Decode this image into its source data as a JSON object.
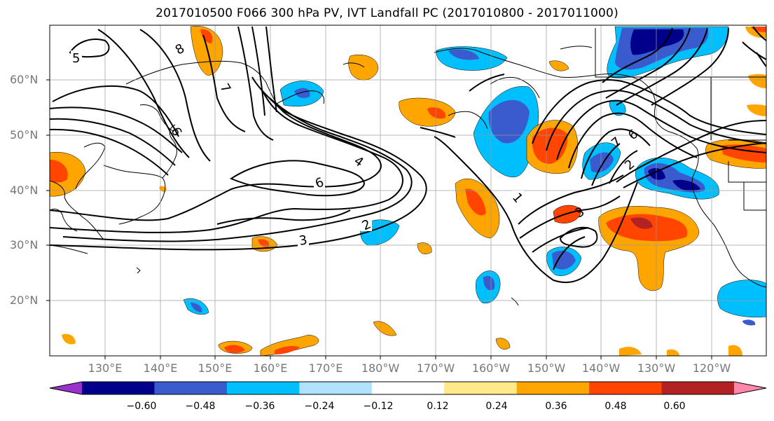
{
  "title": "2017010500 F066 300 hPa PV, IVT Landfall PC (2017010800 - 2017011000)",
  "lat_labels": [
    "60°N",
    "50°N",
    "40°N",
    "30°N",
    "20°N"
  ],
  "lon_labels": [
    "130°E",
    "140°E",
    "150°E",
    "160°E",
    "170°E",
    "180°W",
    "170°W",
    "160°W",
    "150°W",
    "140°W",
    "130°W",
    "120°W"
  ],
  "contour_labels": [
    "5",
    "8",
    "7",
    "6",
    "6",
    "4",
    "3",
    "2",
    "1",
    "3",
    "7",
    "6",
    "2"
  ],
  "colorbar": {
    "ticks": [
      "−0.60",
      "−0.48",
      "−0.36",
      "−0.24",
      "−0.12",
      "0.12",
      "0.24",
      "0.36",
      "0.48",
      "0.60"
    ],
    "colors": [
      "#9932CC",
      "#00008B",
      "#3A5BCD",
      "#00BFFF",
      "#B0E2FF",
      "#FFFFFF",
      "#FFE98A",
      "#FFA500",
      "#FF4500",
      "#B22222",
      "#FF88AA"
    ]
  }
}
